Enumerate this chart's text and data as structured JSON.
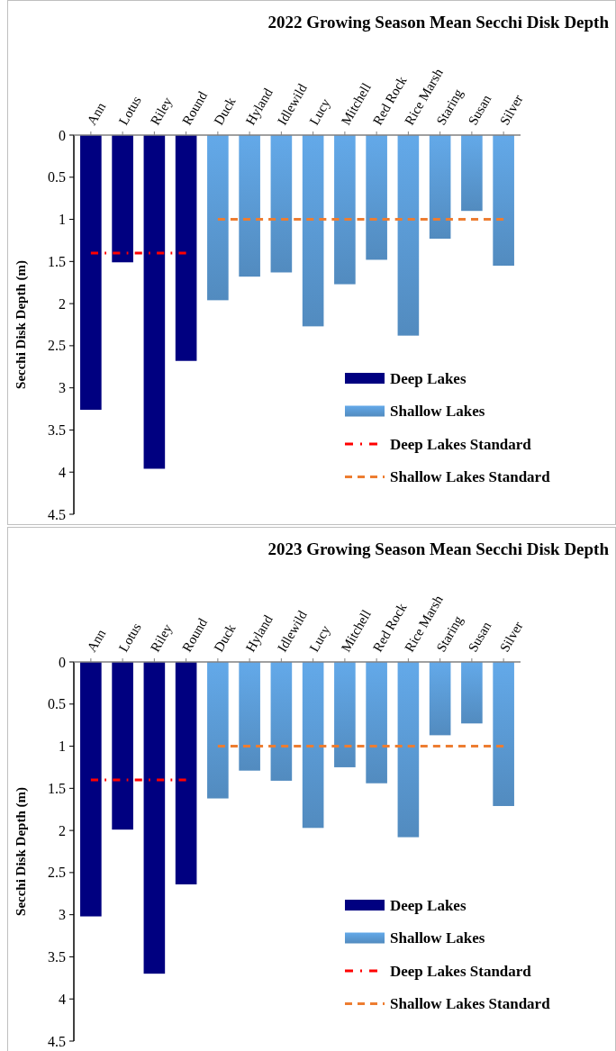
{
  "chart_data": [
    {
      "type": "bar",
      "title": "2022 Growing Season Mean Secchi Disk Depth",
      "ylabel": "Secchi Disk Depth (m)",
      "categories": [
        "Ann",
        "Lotus",
        "Riley",
        "Round",
        "Duck",
        "Hyland",
        "Idlewild",
        "Lucy",
        "Mitchell",
        "Red Rock",
        "Rice Marsh",
        "Staring",
        "Susan",
        "Silver"
      ],
      "series": [
        {
          "name": "Deep Lakes",
          "color": "#000080",
          "values": [
            3.26,
            1.51,
            3.96,
            2.68,
            null,
            null,
            null,
            null,
            null,
            null,
            null,
            null,
            null,
            null
          ]
        },
        {
          "name": "Shallow Lakes",
          "color": "#5b9bd5",
          "values": [
            null,
            null,
            null,
            null,
            1.96,
            1.68,
            1.63,
            2.27,
            1.77,
            1.48,
            2.38,
            1.23,
            0.9,
            1.55
          ]
        },
        {
          "name": "Deep Lakes Standard",
          "type": "line",
          "color": "#ff0000",
          "line_style": "dashdot",
          "values": [
            1.4,
            1.4,
            1.4,
            1.4,
            null,
            null,
            null,
            null,
            null,
            null,
            null,
            null,
            null,
            null
          ]
        },
        {
          "name": "Shallow Lakes Standard",
          "type": "line",
          "color": "#ed7d31",
          "line_style": "dashed",
          "values": [
            null,
            null,
            null,
            null,
            1,
            1,
            1,
            1,
            1,
            1,
            1,
            1,
            1,
            1
          ]
        }
      ],
      "ylim": [
        4.5,
        0
      ],
      "yticks": [
        0,
        0.5,
        1,
        1.5,
        2,
        2.5,
        3,
        3.5,
        4,
        4.5
      ],
      "grid": false,
      "legend": "bottom right"
    },
    {
      "type": "bar",
      "title": "2023 Growing Season Mean Secchi Disk Depth",
      "ylabel": "Secchi Disk Depth (m)",
      "categories": [
        "Ann",
        "Lotus",
        "Riley",
        "Round",
        "Duck",
        "Hyland",
        "Idlewild",
        "Lucy",
        "Mitchell",
        "Red Rock",
        "Rice Marsh",
        "Staring",
        "Susan",
        "Silver"
      ],
      "series": [
        {
          "name": "Deep Lakes",
          "color": "#000080",
          "values": [
            3.02,
            1.99,
            3.7,
            2.64,
            null,
            null,
            null,
            null,
            null,
            null,
            null,
            null,
            null,
            null
          ]
        },
        {
          "name": "Shallow Lakes",
          "color": "#5b9bd5",
          "values": [
            null,
            null,
            null,
            null,
            1.62,
            1.29,
            1.41,
            1.97,
            1.25,
            1.44,
            2.08,
            0.87,
            0.73,
            1.71
          ]
        },
        {
          "name": "Deep Lakes Standard",
          "type": "line",
          "color": "#ff0000",
          "line_style": "dashdot",
          "values": [
            1.4,
            1.4,
            1.4,
            1.4,
            null,
            null,
            null,
            null,
            null,
            null,
            null,
            null,
            null,
            null
          ]
        },
        {
          "name": "Shallow Lakes Standard",
          "type": "line",
          "color": "#ed7d31",
          "line_style": "dashed",
          "values": [
            null,
            null,
            null,
            null,
            1,
            1,
            1,
            1,
            1,
            1,
            1,
            1,
            1,
            1
          ]
        }
      ],
      "ylim": [
        4.5,
        0
      ],
      "yticks": [
        0,
        0.5,
        1,
        1.5,
        2,
        2.5,
        3,
        3.5,
        4,
        4.5
      ],
      "grid": false,
      "legend": "bottom right"
    }
  ]
}
